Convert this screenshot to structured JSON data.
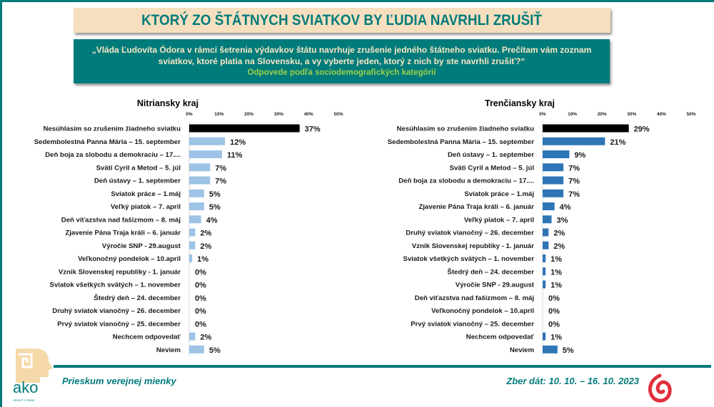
{
  "header": {
    "title": "KTORÝ ZO ŠTÁTNYCH SVIATKOV BY ĽUDIA NAVRHLI ZRUŠIŤ",
    "question_line1": "„Vláda Ľudovíta Ódora v rámci šetrenia výdavkov štátu navrhuje zrušenie jedného štátneho sviatku. Prečítam vám zoznam",
    "question_line2": "sviatkov,  ktoré platia na Slovensku, a vy vyberte jeden,  ktorý z nich by ste navrhli zrušiť?“",
    "subtitle": "Odpovede podľa sociodemografických kategórií"
  },
  "footer": {
    "left": "Prieskum verejnej mienky",
    "right": "Zber dát: 10. 10. – 16. 10. 2023",
    "logo_text": "ako",
    "logo_tagline": "VEDIEŤ O SEBE"
  },
  "colors": {
    "teal": "#007b7b",
    "highlight_bar": "#000000",
    "nitra_bar": "#9dc3e6",
    "trencin_bar": "#2e75b6"
  },
  "chart_data": [
    {
      "type": "bar",
      "orientation": "horizontal",
      "title": "Nitriansky kraj",
      "xlim": [
        0,
        50
      ],
      "ticks": [
        "0%",
        "10%",
        "20%",
        "30%",
        "40%",
        "50%"
      ],
      "grid": false,
      "bar_color": "#9dc3e6",
      "categories": [
        "Nesúhlasím so zrušením žiadneho sviatku",
        "Sedembolestná Panna Mária – 15. september",
        "Deň boja za slobodu a demokraciu – 17....",
        "Sväti Cyril a Metod – 5. júl",
        "Deň ústavy – 1. september",
        "Sviatok práce – 1.máj",
        "Veľký piatok – 7. apríl",
        "Deň víťazstva nad fašizmom – 8. máj",
        "Zjavenie Pána Traja králi – 6. január",
        "Výročie SNP - 29.august",
        "Veľkonočný pondelok – 10.apríl",
        "Vznik Slovenskej republiky - 1. január",
        "Sviatok všetkých svätých – 1. november",
        "Štedrý deň – 24. december",
        "Druhý sviatok vianočný – 26. december",
        "Prvý sviatok vianočný – 25. december",
        "Nechcem odpovedať",
        "Neviem"
      ],
      "values": [
        37,
        12,
        11,
        7,
        7,
        5,
        5,
        4,
        2,
        2,
        1,
        0,
        0,
        0,
        0,
        0,
        2,
        5
      ],
      "labels": [
        "37%",
        "12%",
        "11%",
        "7%",
        "7%",
        "5%",
        "5%",
        "4%",
        "2%",
        "2%",
        "1%",
        "0%",
        "0%",
        "0%",
        "0%",
        "0%",
        "2%",
        "5%"
      ]
    },
    {
      "type": "bar",
      "orientation": "horizontal",
      "title": "Trenčiansky kraj",
      "xlim": [
        0,
        50
      ],
      "ticks": [
        "0%",
        "10%",
        "20%",
        "30%",
        "40%",
        "50%"
      ],
      "grid": false,
      "bar_color": "#2e75b6",
      "categories": [
        "Nesúhlasím so zrušením žiadneho sviatku",
        "Sedembolestná Panna Mária – 15. september",
        "Deň ústavy – 1. september",
        "Sväti Cyril a Metod – 5. júl",
        "Deň boja za slobodu a demokraciu – 17....",
        "Sviatok práce – 1.máj",
        "Zjavenie Pána Traja králi – 6. január",
        "Veľký piatok – 7. apríl",
        "Druhý sviatok vianočný – 26. december",
        "Vznik Slovenskej republiky - 1. január",
        "Sviatok všetkých svätých – 1. november",
        "Štedrý deň – 24. december",
        "Výročie SNP - 29.august",
        "Deň víťazstva nad fašizmom – 8. máj",
        "Veľkonočný pondelok – 10.apríl",
        "Prvý sviatok vianočný – 25. december",
        "Nechcem odpovedať",
        "Neviem"
      ],
      "values": [
        29,
        21,
        9,
        7,
        7,
        7,
        4,
        3,
        2,
        2,
        1,
        1,
        1,
        0,
        0,
        0,
        1,
        5
      ],
      "labels": [
        "29%",
        "21%",
        "9%",
        "7%",
        "7%",
        "7%",
        "4%",
        "3%",
        "2%",
        "2%",
        "1%",
        "1%",
        "1%",
        "0%",
        "0%",
        "0%",
        "1%",
        "5%"
      ]
    }
  ]
}
